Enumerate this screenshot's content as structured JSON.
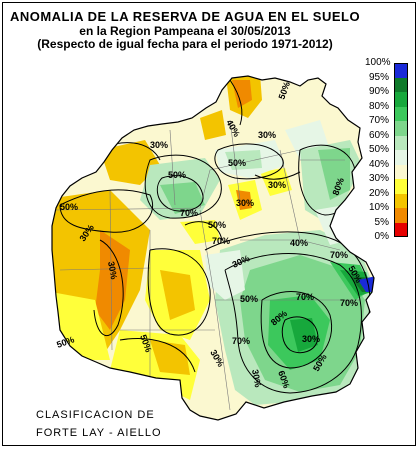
{
  "header": {
    "title": "ANOMALIA DE LA RESERVA DE AGUA EN EL SUELO",
    "subtitle": "en la Region Pampeana el  30/05/2013",
    "period": "(Respecto de igual fecha para el periodo 1971-2012)"
  },
  "legend": {
    "items": [
      {
        "label": "100%",
        "color": "#1a2ad8"
      },
      {
        "label": "95%",
        "color": "#0f7a2a"
      },
      {
        "label": "90%",
        "color": "#17a83c"
      },
      {
        "label": "80%",
        "color": "#3cc85c"
      },
      {
        "label": "70%",
        "color": "#7ed68c"
      },
      {
        "label": "60%",
        "color": "#b9e8bd"
      },
      {
        "label": "50%",
        "color": "#e6f6e6"
      },
      {
        "label": "40%",
        "color": "#fbf8d0"
      },
      {
        "label": "30%",
        "color": "#ffff3a"
      },
      {
        "label": "20%",
        "color": "#f3c400"
      },
      {
        "label": "10%",
        "color": "#f08a00"
      },
      {
        "label": "5%",
        "color": "#e60000"
      },
      {
        "label": "0%",
        "color": ""
      }
    ]
  },
  "map": {
    "contour_labels": [
      "30%",
      "50%",
      "50%",
      "40%",
      "30%",
      "50%",
      "50%",
      "30%",
      "70%",
      "50%",
      "30%",
      "30%",
      "70%",
      "30%",
      "80%",
      "30%",
      "40%",
      "70%",
      "50%",
      "80%",
      "50%",
      "50%",
      "70%",
      "50%",
      "30%",
      "60%",
      "30%",
      "50%",
      "70%",
      "30%",
      "70%"
    ]
  },
  "credit": {
    "line1": "CLASIFICACION DE",
    "line2": "FORTE LAY - AIELLO"
  }
}
